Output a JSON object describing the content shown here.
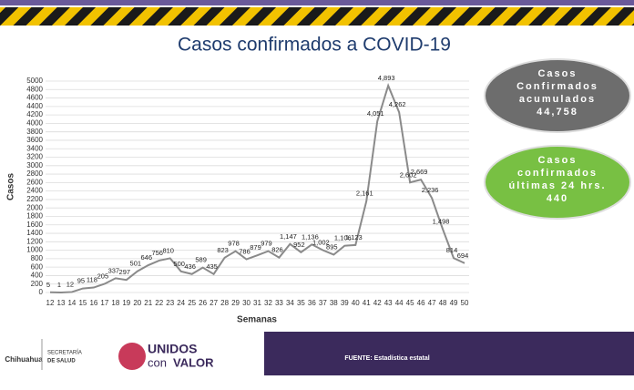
{
  "chart_data": {
    "type": "line",
    "title": "Casos confirmados a COVID-19",
    "x_label": "Semanas",
    "y_label": "Casos",
    "x": [
      12,
      13,
      14,
      15,
      16,
      17,
      18,
      19,
      20,
      21,
      22,
      23,
      24,
      25,
      26,
      27,
      28,
      29,
      30,
      31,
      32,
      33,
      34,
      35,
      36,
      37,
      38,
      39,
      40,
      41,
      42,
      43,
      44,
      45,
      46,
      47,
      48,
      49,
      50
    ],
    "xlim": [
      12,
      50
    ],
    "series": [
      {
        "name": "Casos",
        "color": "#8a8a8a",
        "values": [
          5,
          1,
          12,
          95,
          118,
          205,
          337,
          297,
          501,
          646,
          756,
          810,
          500,
          436,
          589,
          435,
          823,
          978,
          786,
          879,
          979,
          826,
          1147,
          952,
          1136,
          1002,
          895,
          1106,
          1123,
          2161,
          4051,
          4893,
          4262,
          2602,
          2669,
          2236,
          1498,
          814,
          694
        ],
        "value_labels": [
          "5",
          "1",
          "12",
          "95",
          "118",
          "205",
          "337",
          "297",
          "501",
          "646",
          "756",
          "810",
          "500",
          "436",
          "589",
          "435",
          "823",
          "978",
          "786",
          "879",
          "979",
          "826",
          "1,147",
          "952",
          "1,136",
          "1,002",
          "895",
          "1,106",
          "1,123",
          "2,161",
          "4,051",
          "4,893",
          "4,262",
          "2,602",
          "2,669",
          "2,236",
          "1,498",
          "814",
          "694"
        ]
      }
    ],
    "ylim": [
      0,
      5000
    ],
    "yticks": [
      0,
      200,
      400,
      600,
      800,
      1000,
      1200,
      1400,
      1600,
      1800,
      2000,
      2200,
      2400,
      2600,
      2800,
      3000,
      3200,
      3400,
      3600,
      3800,
      4000,
      4200,
      4400,
      4600,
      4800,
      5000
    ],
    "grid": true
  },
  "panels": [
    {
      "lines": [
        "Casos",
        "Confirmados",
        "acumulados"
      ],
      "value": "44,758",
      "color": "#6d6d6d"
    },
    {
      "lines": [
        "Casos",
        "confirmados",
        "últimas 24 hrs."
      ],
      "value": "440",
      "color": "#78c043"
    }
  ],
  "footer": {
    "source": "FUENTE: Estadística estatal",
    "state": "Chihuahua",
    "ministry": [
      "SECRETARÍA",
      "DE SALUD"
    ],
    "brand": [
      "UNIDOS",
      "con",
      "VALOR"
    ]
  }
}
